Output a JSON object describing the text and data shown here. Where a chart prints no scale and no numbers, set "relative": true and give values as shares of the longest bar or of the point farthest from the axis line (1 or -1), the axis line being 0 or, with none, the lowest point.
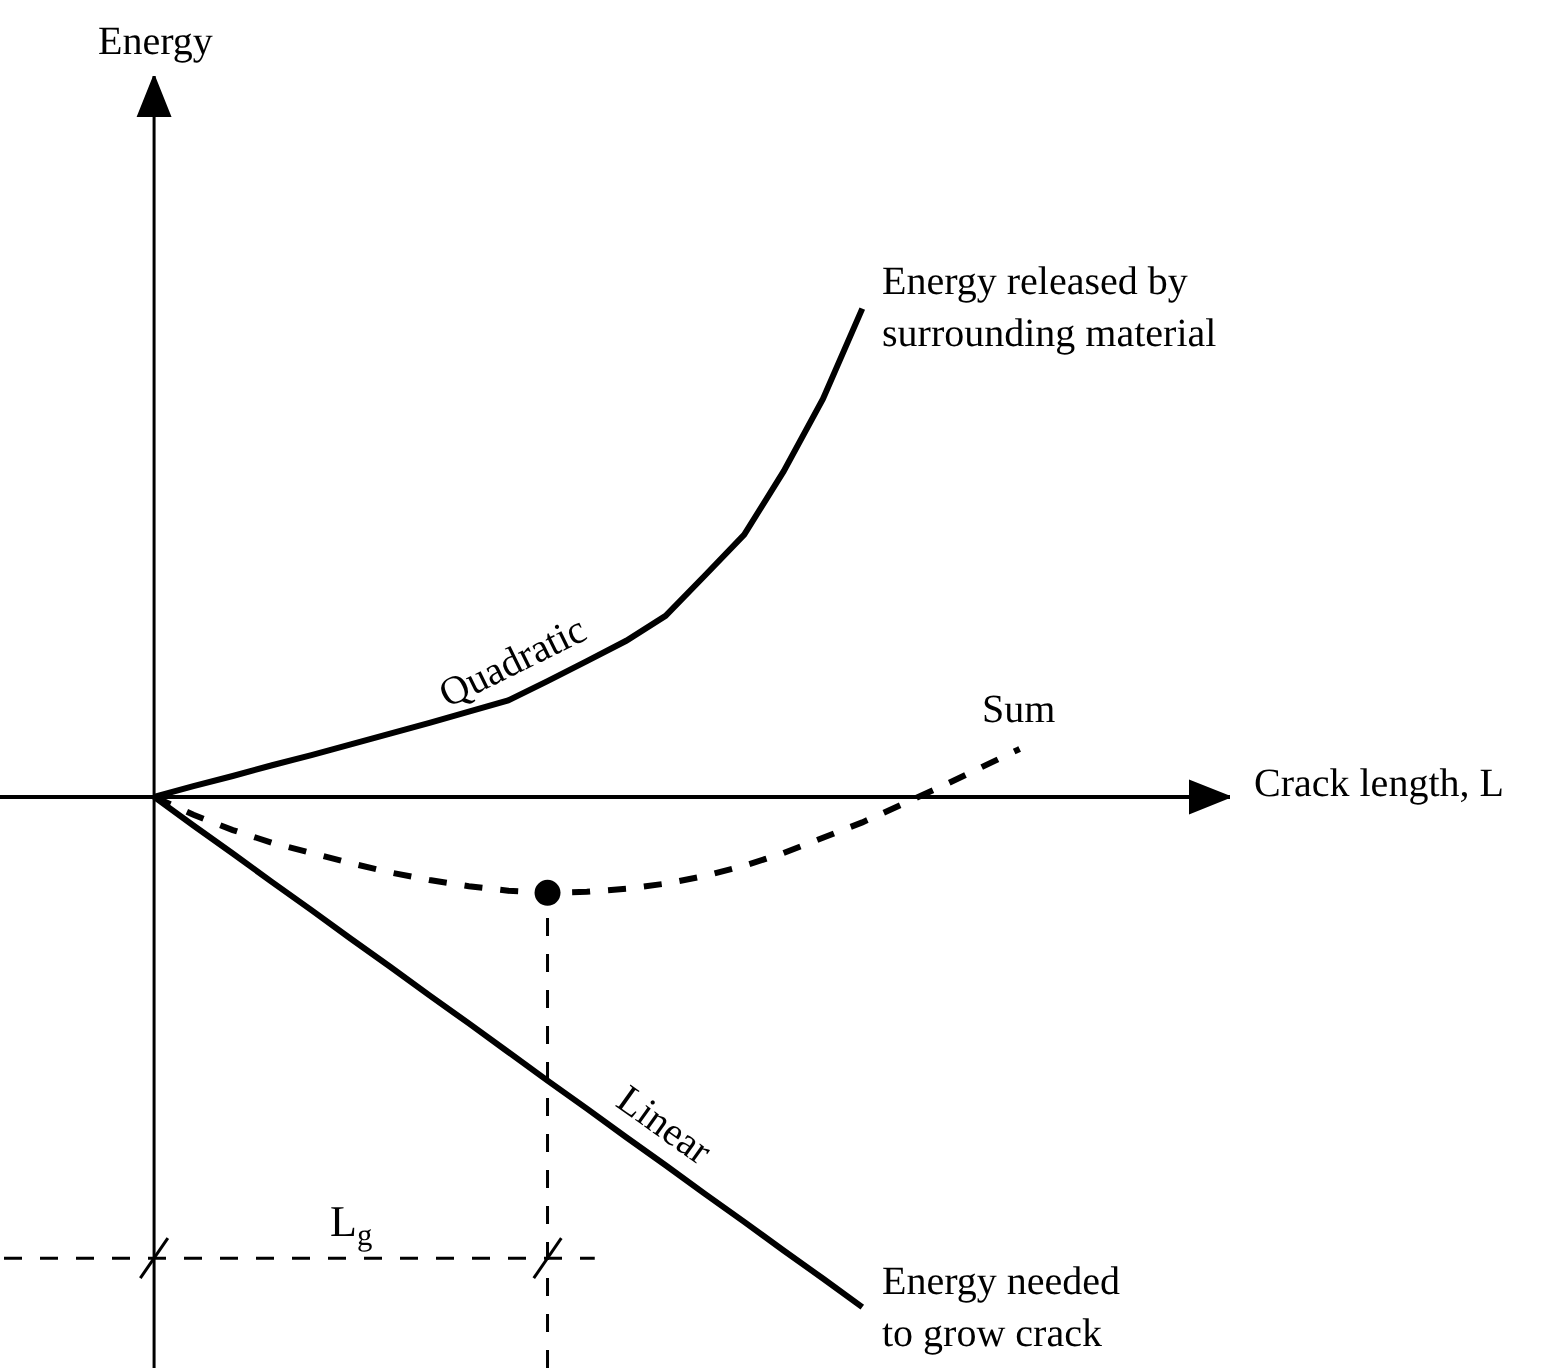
{
  "chart_data": {
    "type": "line",
    "relative": true,
    "legend": false,
    "grid": false,
    "categories": [
      null,
      null,
      null,
      null,
      null,
      null,
      null,
      null,
      null,
      null,
      null,
      null,
      null,
      null,
      null,
      null,
      null,
      null,
      null,
      null,
      null,
      null,
      null
    ],
    "series": [
      {
        "name": "Quadratic",
        "color": "#000000",
        "line_style": "solid",
        "values": [
          0,
          0.021,
          0.041,
          0.062,
          0.082,
          0.103,
          0.124,
          0.145,
          0.167,
          0.189,
          0.227,
          0.266,
          0.306,
          0.355,
          0.434,
          0.514,
          0.638,
          0.78,
          0.957,
          null,
          null,
          null,
          null
        ]
      },
      {
        "name": "Linear",
        "color": "#000000",
        "line_style": "solid",
        "values": [
          0,
          -0.056,
          -0.111,
          -0.167,
          -0.222,
          -0.278,
          -0.333,
          -0.389,
          -0.444,
          -0.5,
          -0.556,
          -0.611,
          -0.667,
          -0.722,
          -0.778,
          -0.833,
          -0.889,
          -0.944,
          -1,
          null,
          null,
          null,
          null
        ]
      },
      {
        "name": "Sum",
        "color": "#000000",
        "line_style": "dashed",
        "values": [
          0,
          -0.035,
          -0.065,
          -0.09,
          -0.11,
          -0.13,
          -0.148,
          -0.163,
          -0.175,
          -0.184,
          -0.188,
          -0.186,
          -0.18,
          -0.17,
          -0.155,
          -0.135,
          -0.11,
          -0.08,
          -0.05,
          -0.015,
          0.02,
          0.057,
          0.094
        ]
      }
    ],
    "annotations": [
      "Energy",
      "Crack length, L",
      "Energy released by\nsurrounding material",
      "Energy needed\nto grow crack",
      "L$_{g}$"
    ]
  }
}
